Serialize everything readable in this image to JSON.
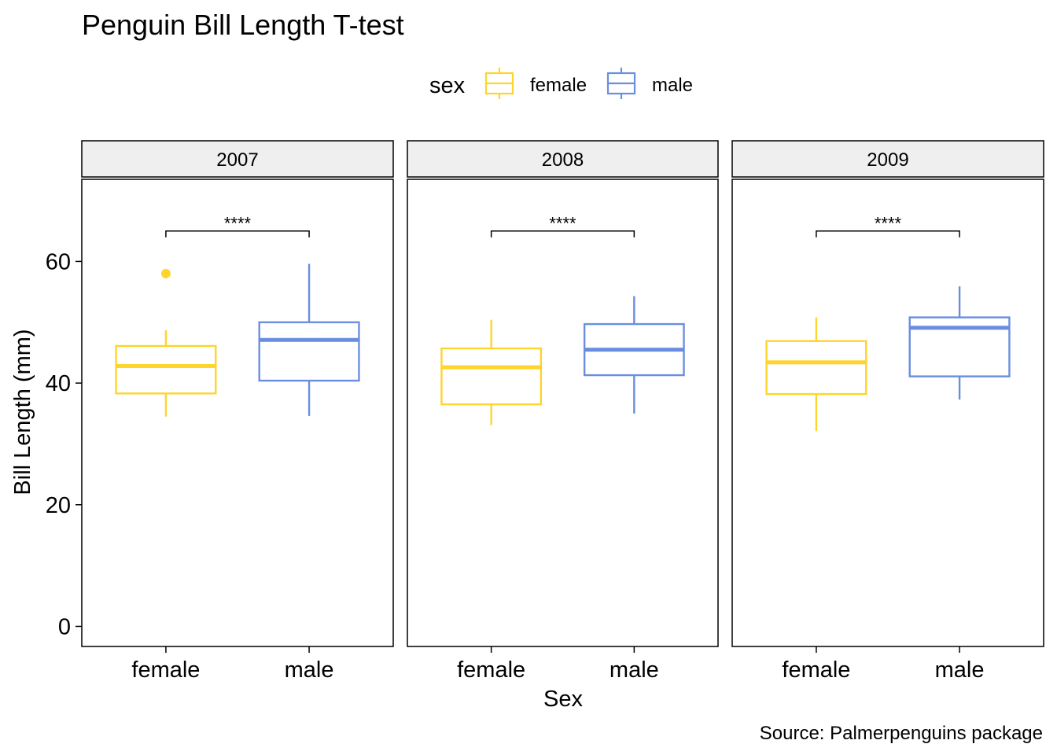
{
  "chart_data": {
    "type": "boxplot",
    "title": "Penguin Bill Length T-test",
    "xlabel": "Sex",
    "ylabel": "Bill Length (mm)",
    "caption": "Source: Palmerpenguins package",
    "ylim": [
      -3.3,
      73.5
    ],
    "yticks": [
      0,
      20,
      40,
      60
    ],
    "legend": {
      "title": "sex",
      "placement": "top",
      "entries": [
        {
          "label": "female",
          "color": "#FFD42B"
        },
        {
          "label": "male",
          "color": "#6A8EDF"
        }
      ]
    },
    "categories": [
      "female",
      "male"
    ],
    "facets": [
      {
        "label": "2007",
        "significance": {
          "label": "****",
          "y": 65
        },
        "boxes": [
          {
            "group": "female",
            "whisker_low": 34.5,
            "q1": 38.3,
            "median": 42.8,
            "q3": 46.1,
            "whisker_high": 48.7,
            "outliers": [
              58.0
            ]
          },
          {
            "group": "male",
            "whisker_low": 34.6,
            "q1": 40.4,
            "median": 47.1,
            "q3": 50.0,
            "whisker_high": 59.6,
            "outliers": []
          }
        ]
      },
      {
        "label": "2008",
        "significance": {
          "label": "****",
          "y": 65
        },
        "boxes": [
          {
            "group": "female",
            "whisker_low": 33.1,
            "q1": 36.5,
            "median": 42.6,
            "q3": 45.7,
            "whisker_high": 50.4,
            "outliers": []
          },
          {
            "group": "male",
            "whisker_low": 35.0,
            "q1": 41.3,
            "median": 45.5,
            "q3": 49.7,
            "whisker_high": 54.3,
            "outliers": []
          }
        ]
      },
      {
        "label": "2009",
        "significance": {
          "label": "****",
          "y": 65
        },
        "boxes": [
          {
            "group": "female",
            "whisker_low": 32.1,
            "q1": 38.2,
            "median": 43.4,
            "q3": 46.9,
            "whisker_high": 50.8,
            "outliers": []
          },
          {
            "group": "male",
            "whisker_low": 37.3,
            "q1": 41.1,
            "median": 49.1,
            "q3": 50.8,
            "whisker_high": 55.9,
            "outliers": []
          }
        ]
      }
    ]
  }
}
